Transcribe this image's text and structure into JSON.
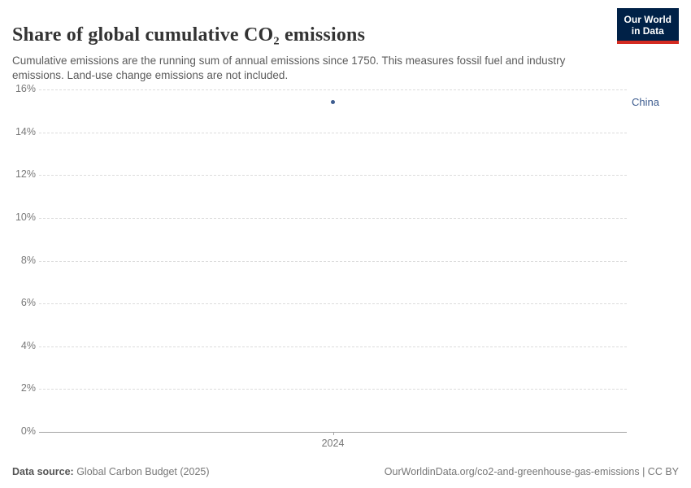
{
  "header": {
    "title": "Share of global cumulative CO₂ emissions",
    "subtitle": "Cumulative emissions are the running sum of annual emissions since 1750. This measures fossil fuel and industry emissions. Land-use change emissions are not included.",
    "logo": {
      "line1": "Our World",
      "line2": "in Data",
      "bg_color": "#002147",
      "accent_color": "#d42b21"
    }
  },
  "chart_data": {
    "type": "scatter",
    "title": "Share of global cumulative CO₂ emissions",
    "x": [
      2024
    ],
    "series": [
      {
        "name": "China",
        "values": [
          15.4
        ],
        "color": "#3d5c8f"
      }
    ],
    "xlabel": "",
    "ylabel": "",
    "ylim": [
      0,
      16
    ],
    "yticks": [
      0,
      2,
      4,
      6,
      8,
      10,
      12,
      14,
      16
    ],
    "ytick_suffix": "%",
    "xticks": [
      "2024"
    ],
    "grid": "horizontal-dashed",
    "legend_position": "right-of-plot",
    "gridline_color": "#dcdcdc",
    "axis_color": "#a3a3a3"
  },
  "footer": {
    "datasource_label": "Data source:",
    "datasource_value": " Global Carbon Budget (2025)",
    "link": "OurWorldinData.org/co2-and-greenhouse-gas-emissions | CC BY"
  }
}
